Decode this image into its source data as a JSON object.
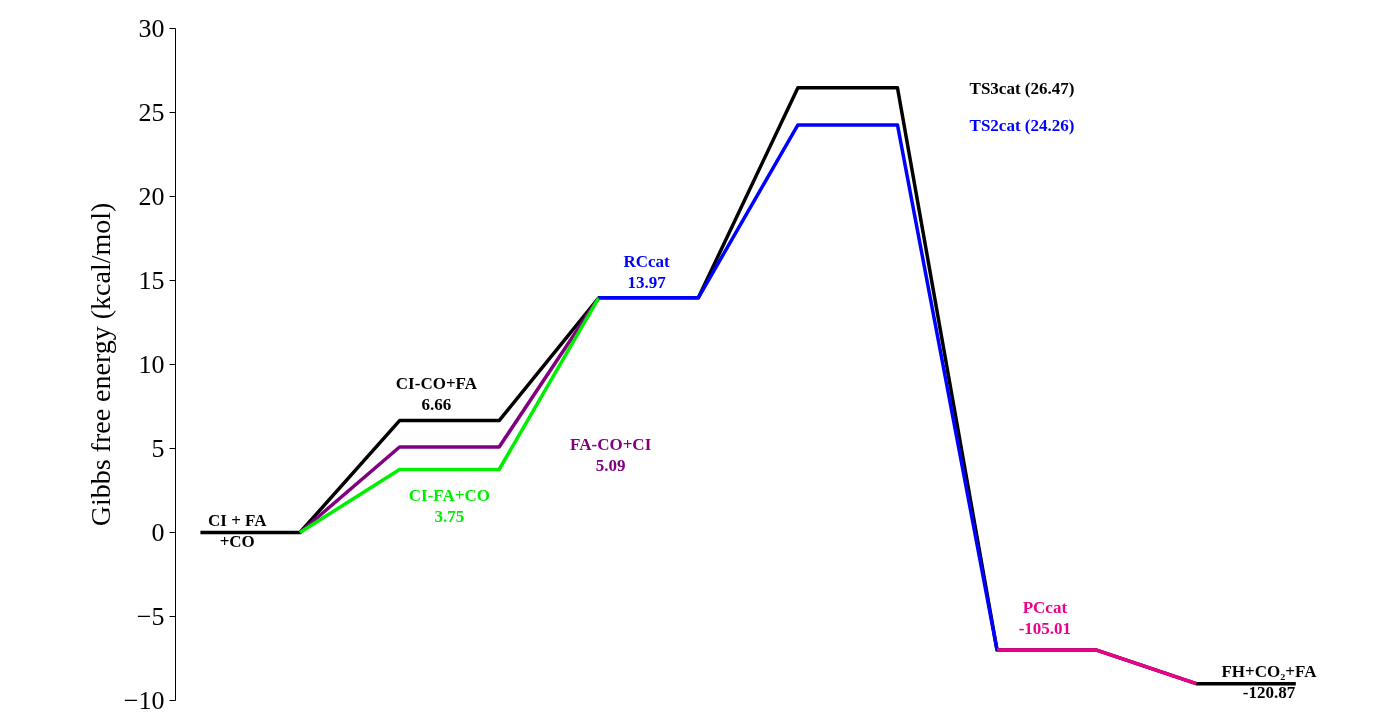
{
  "chart_data": {
    "type": "line",
    "ylabel": "Gibbs free energy (kcal/mol)",
    "ylim": [
      -10,
      30
    ],
    "categories": [
      null,
      null,
      null,
      null,
      null,
      null,
      null,
      null,
      null,
      null,
      null,
      null
    ],
    "yticks": [
      {
        "value": -10,
        "label": "−10"
      },
      {
        "value": -5,
        "label": "−5"
      },
      0,
      5,
      10,
      15,
      20,
      25,
      30
    ],
    "tick_labels": "y",
    "marker": "none",
    "line_style": "solid",
    "series": [
      {
        "color": "#000000",
        "values": [
          0,
          0,
          6.66,
          6.66,
          13.97,
          13.97,
          26.47,
          26.47,
          -7,
          -7,
          -9,
          -9
        ]
      },
      {
        "color": "#800080",
        "values": [
          null,
          0,
          5.09,
          5.09,
          13.97,
          null,
          null,
          null,
          null,
          null,
          null,
          null
        ]
      },
      {
        "color": "#00ee00",
        "values": [
          null,
          0,
          3.75,
          3.75,
          13.97,
          null,
          null,
          null,
          null,
          null,
          null,
          null
        ]
      },
      {
        "color": "#0000ff",
        "values": [
          null,
          null,
          null,
          null,
          13.97,
          13.97,
          24.26,
          24.26,
          -7,
          null,
          null,
          null
        ]
      },
      {
        "color": "#ec008c",
        "values": [
          null,
          null,
          null,
          null,
          null,
          null,
          null,
          null,
          -7,
          -7,
          -9,
          null
        ]
      }
    ],
    "annotations": [
      "CI + FA\n+CO",
      "CI-CO+FA\n6.66",
      "FA-CO+CI\n5.09",
      "CI-FA+CO\n3.75",
      "RCcat\n13.97",
      "TS3cat (26.47)",
      "TS2cat (24.26)",
      "PCcat\n-105.01",
      "FH+CO₂+FA\n-120.87"
    ]
  }
}
